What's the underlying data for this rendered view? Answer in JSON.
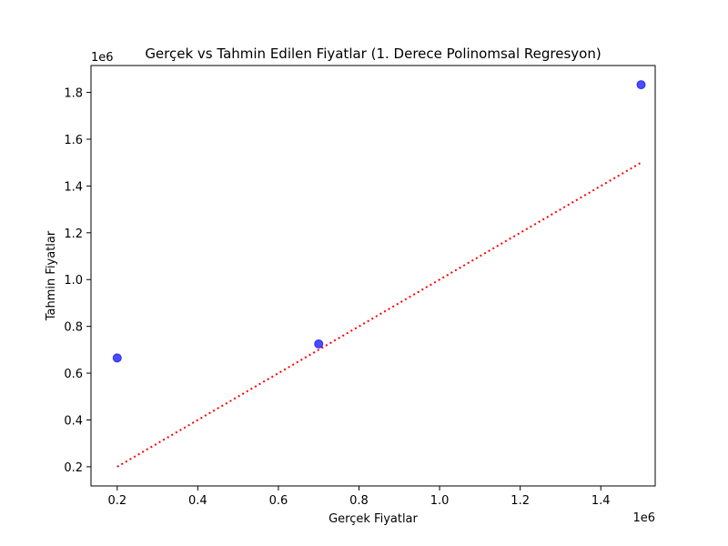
{
  "chart_data": {
    "type": "scatter",
    "title": "Gerçek vs Tahmin Edilen Fiyatlar (1. Derece Polinomsal Regresyon)",
    "xlabel": "Gerçek Fiyatlar",
    "ylabel": "Tahmin Fiyatlar",
    "x_offset_label": "1e6",
    "y_offset_label": "1e6",
    "xlim": [
      0.135,
      1.535
    ],
    "ylim": [
      0.118,
      1.915
    ],
    "x_ticks": [
      0.2,
      0.4,
      0.6,
      0.8,
      1.0,
      1.2,
      1.4
    ],
    "x_tick_labels": [
      "0.2",
      "0.4",
      "0.6",
      "0.8",
      "1.0",
      "1.2",
      "1.4"
    ],
    "y_ticks": [
      0.2,
      0.4,
      0.6,
      0.8,
      1.0,
      1.2,
      1.4,
      1.6,
      1.8
    ],
    "y_tick_labels": [
      "0.2",
      "0.4",
      "0.6",
      "0.8",
      "1.0",
      "1.2",
      "1.4",
      "1.6",
      "1.8"
    ],
    "grid": false,
    "points": [
      {
        "x": 0.2,
        "y": 0.665
      },
      {
        "x": 0.7,
        "y": 0.725
      },
      {
        "x": 1.5,
        "y": 1.833
      }
    ],
    "reference_line": {
      "x": [
        0.2,
        1.5
      ],
      "y": [
        0.2,
        1.5
      ],
      "style": "dotted"
    },
    "colors": {
      "points": "#0000ff",
      "reference_line": "#ff0000"
    }
  }
}
